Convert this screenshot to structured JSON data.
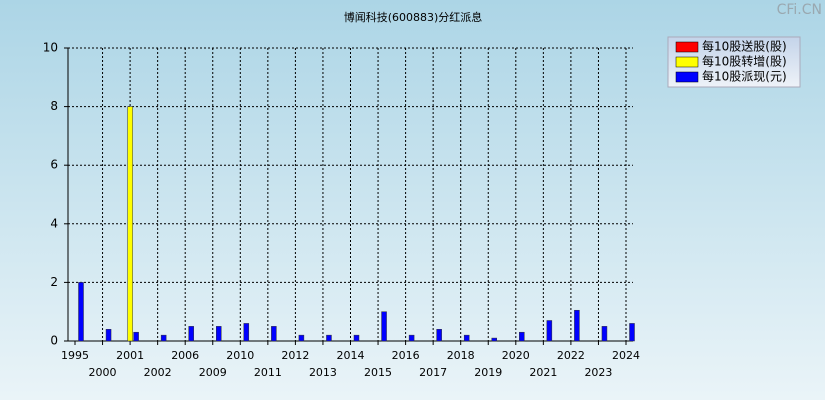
{
  "chart_data": {
    "type": "bar",
    "title": "博闻科技(600883)分红派息",
    "watermark": "CFi.CN",
    "categories": [
      "1995",
      "2000",
      "2001",
      "2002",
      "2006",
      "2009",
      "2010",
      "2011",
      "2012",
      "2013",
      "2014",
      "2015",
      "2016",
      "2017",
      "2018",
      "2019",
      "2020",
      "2021",
      "2022",
      "2023",
      "2024"
    ],
    "series": [
      {
        "name": "每10股送股(股)",
        "color": "#ff0000",
        "values": [
          null,
          null,
          null,
          null,
          null,
          null,
          null,
          null,
          null,
          null,
          null,
          null,
          null,
          null,
          null,
          null,
          null,
          null,
          null,
          null,
          null
        ]
      },
      {
        "name": "每10股转增(股)",
        "color": "#ffff00",
        "values": [
          null,
          null,
          8,
          null,
          null,
          null,
          null,
          null,
          null,
          null,
          null,
          null,
          null,
          null,
          null,
          null,
          null,
          null,
          null,
          null,
          null
        ]
      },
      {
        "name": "每10股派现(元)",
        "color": "#0000ff",
        "values": [
          2,
          0.4,
          0.3,
          0.2,
          0.5,
          0.5,
          0.6,
          0.5,
          0.2,
          0.2,
          0.2,
          1.0,
          0.2,
          0.4,
          0.2,
          0.1,
          0.3,
          0.7,
          1.05,
          0.5,
          0.6
        ]
      }
    ],
    "ylim": [
      0,
      10
    ],
    "yticks": [
      0,
      2,
      4,
      6,
      8,
      10
    ],
    "grid": true,
    "legend": "top-right"
  }
}
